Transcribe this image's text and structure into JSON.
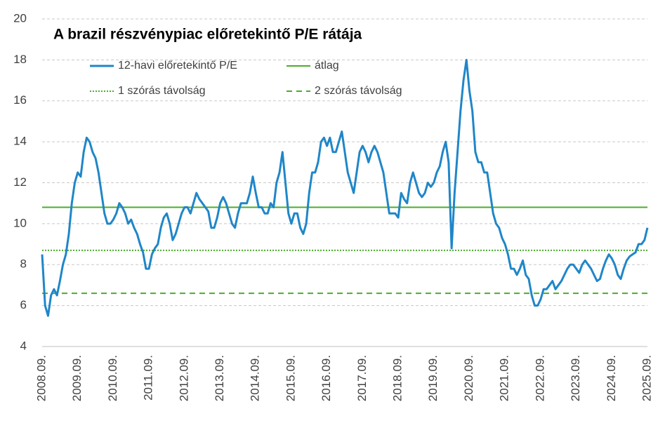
{
  "chart_data": {
    "type": "line",
    "title": "A brazil részvénypiac előretekintő P/E rátája",
    "categories": [
      "2008.09.",
      null,
      null,
      null,
      null,
      null,
      null,
      null,
      null,
      null,
      null,
      null,
      "2009.09.",
      null,
      null,
      null,
      null,
      null,
      null,
      null,
      null,
      null,
      null,
      null,
      "2010.09.",
      null,
      null,
      null,
      null,
      null,
      null,
      null,
      null,
      null,
      null,
      null,
      "2011.09.",
      null,
      null,
      null,
      null,
      null,
      null,
      null,
      null,
      null,
      null,
      null,
      "2012.09.",
      null,
      null,
      null,
      null,
      null,
      null,
      null,
      null,
      null,
      null,
      null,
      "2013.09.",
      null,
      null,
      null,
      null,
      null,
      null,
      null,
      null,
      null,
      null,
      null,
      "2014.09.",
      null,
      null,
      null,
      null,
      null,
      null,
      null,
      null,
      null,
      null,
      null,
      "2015.09.",
      null,
      null,
      null,
      null,
      null,
      null,
      null,
      null,
      null,
      null,
      null,
      "2016.09.",
      null,
      null,
      null,
      null,
      null,
      null,
      null,
      null,
      null,
      null,
      null,
      "2017.09.",
      null,
      null,
      null,
      null,
      null,
      null,
      null,
      null,
      null,
      null,
      null,
      "2018.09.",
      null,
      null,
      null,
      null,
      null,
      null,
      null,
      null,
      null,
      null,
      null,
      "2019.09.",
      null,
      null,
      null,
      null,
      null,
      null,
      null,
      null,
      null,
      null,
      null,
      "2020.09.",
      null,
      null,
      null,
      null,
      null,
      null,
      null,
      null,
      null,
      null,
      null,
      "2021.09.",
      null,
      null,
      null,
      null,
      null,
      null,
      null,
      null,
      null,
      null,
      null,
      "2022.09.",
      null,
      null,
      null,
      null,
      null,
      null,
      null,
      null,
      null,
      null,
      null,
      "2023.09.",
      null,
      null,
      null,
      null,
      null,
      null,
      null,
      null,
      null,
      null,
      null,
      "2024.09.",
      null,
      null,
      null,
      null,
      null,
      null,
      null,
      null,
      null,
      null,
      null,
      "2025.09."
    ],
    "series": [
      {
        "name": "12-havi előretekintő P/E",
        "color": "#1f86c8",
        "values": [
          8.5,
          6,
          5.5,
          6.5,
          6.8,
          6.5,
          7.2,
          8,
          8.5,
          9.5,
          11,
          12,
          12.5,
          12.3,
          13.5,
          14.2,
          14,
          13.5,
          13.2,
          12.5,
          11.5,
          10.5,
          10,
          10,
          10.2,
          10.5,
          11,
          10.8,
          10.5,
          10,
          10.2,
          9.8,
          9.5,
          9,
          8.6,
          7.8,
          7.8,
          8.5,
          8.8,
          9,
          9.8,
          10.3,
          10.5,
          10,
          9.2,
          9.5,
          10,
          10.5,
          10.8,
          10.8,
          10.5,
          11,
          11.5,
          11.2,
          11,
          10.8,
          10.6,
          9.8,
          9.8,
          10.3,
          11,
          11.3,
          11,
          10.5,
          10,
          9.8,
          10.5,
          11,
          11,
          11,
          11.5,
          12.3,
          11.5,
          10.8,
          10.8,
          10.5,
          10.5,
          11,
          10.8,
          12,
          12.5,
          13.5,
          12,
          10.5,
          10,
          10.5,
          10.5,
          9.8,
          9.5,
          10,
          11.5,
          12.5,
          12.5,
          13,
          14,
          14.2,
          13.8,
          14.2,
          13.5,
          13.5,
          14,
          14.5,
          13.5,
          12.5,
          12,
          11.5,
          12.5,
          13.5,
          13.8,
          13.5,
          13,
          13.5,
          13.8,
          13.5,
          13,
          12.5,
          11.5,
          10.5,
          10.5,
          10.5,
          10.3,
          11.5,
          11.2,
          11,
          12,
          12.5,
          12,
          11.5,
          11.3,
          11.5,
          12,
          11.8,
          12,
          12.5,
          12.8,
          13.5,
          14,
          13,
          8.8,
          11.5,
          13.5,
          15.5,
          17,
          18,
          16.5,
          15.5,
          13.5,
          13,
          13,
          12.5,
          12.5,
          11.5,
          10.5,
          10,
          9.8,
          9.3,
          9,
          8.5,
          7.8,
          7.8,
          7.5,
          7.8,
          8.2,
          7.5,
          7.3,
          6.5,
          6,
          6,
          6.3,
          6.8,
          6.8,
          7,
          7.2,
          6.8,
          7,
          7.2,
          7.5,
          7.8,
          8,
          8,
          7.8,
          7.6,
          8,
          8.2,
          8,
          7.8,
          7.5,
          7.2,
          7.3,
          7.8,
          8.2,
          8.5,
          8.3,
          8,
          7.5,
          7.3,
          7.8,
          8.2,
          8.4,
          8.5,
          8.6,
          9,
          9,
          9.2,
          9.8
        ]
      }
    ],
    "hlines": [
      {
        "name": "átlag",
        "color": "#4aad2a",
        "value": 10.8,
        "dash": "solid"
      },
      {
        "name": "1 szórás távolság",
        "color": "#4aad2a",
        "value": 8.7,
        "dash": "dotted"
      },
      {
        "name": "2 szórás távolság",
        "color": "#4aad2a",
        "value": 6.6,
        "dash": "dashed"
      }
    ],
    "ylim": [
      4,
      20
    ],
    "yticks": [
      4,
      6,
      8,
      10,
      12,
      14,
      16,
      18,
      20
    ],
    "grid": true
  }
}
